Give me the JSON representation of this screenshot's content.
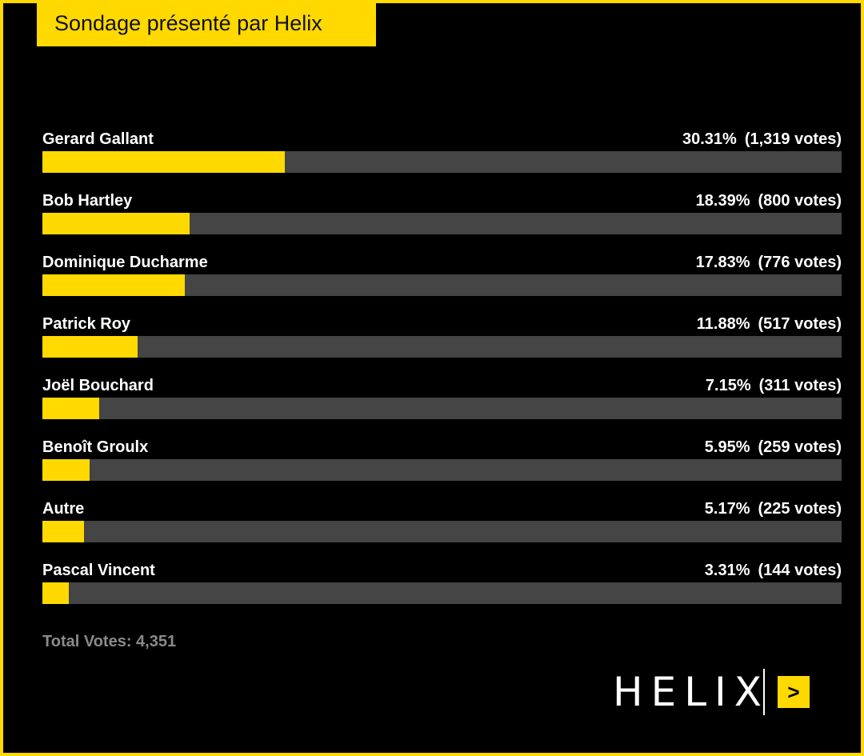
{
  "header": {
    "title": "Sondage présenté par Helix"
  },
  "poll": {
    "items": [
      {
        "name": "Gerard Gallant",
        "percent_label": "30.31%",
        "votes_label": "(1,319 votes)",
        "percent": 30.31
      },
      {
        "name": "Bob Hartley",
        "percent_label": "18.39%",
        "votes_label": "(800 votes)",
        "percent": 18.39
      },
      {
        "name": "Dominique Ducharme",
        "percent_label": "17.83%",
        "votes_label": "(776 votes)",
        "percent": 17.83
      },
      {
        "name": "Patrick Roy",
        "percent_label": "11.88%",
        "votes_label": "(517 votes)",
        "percent": 11.88
      },
      {
        "name": "Joël Bouchard",
        "percent_label": "7.15%",
        "votes_label": "(311 votes)",
        "percent": 7.15
      },
      {
        "name": "Benoît Groulx",
        "percent_label": "5.95%",
        "votes_label": "(259 votes)",
        "percent": 5.95
      },
      {
        "name": "Autre",
        "percent_label": "5.17%",
        "votes_label": "(225 votes)",
        "percent": 5.17
      },
      {
        "name": "Pascal Vincent",
        "percent_label": "3.31%",
        "votes_label": "(144 votes)",
        "percent": 3.31
      }
    ],
    "total_label": "Total Votes: 4,351"
  },
  "brand": {
    "wordmark": "HELIX",
    "arrow_icon": "chevron-right-icon",
    "arrow_glyph": ">"
  },
  "colors": {
    "accent": "#FFD900",
    "track": "#454545",
    "background": "#000000"
  }
}
